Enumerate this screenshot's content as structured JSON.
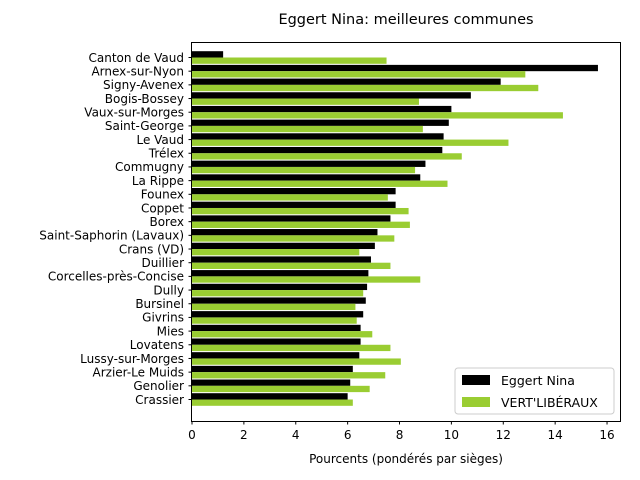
{
  "chart_data": {
    "type": "bar",
    "orientation": "horizontal",
    "title": "Eggert Nina: meilleures communes",
    "xlabel": "Pourcents (pondérés par sièges)",
    "ylabel": "",
    "xlim": [
      0,
      16.5
    ],
    "xticks": [
      "0",
      "2",
      "4",
      "6",
      "8",
      "10",
      "12",
      "14",
      "16"
    ],
    "grid": false,
    "legend_position": "bottom-right",
    "categories": [
      "Canton de Vaud",
      "Arnex-sur-Nyon",
      "Signy-Avenex",
      "Bogis-Bossey",
      "Vaux-sur-Morges",
      "Saint-George",
      "Le Vaud",
      "Trélex",
      "Commugny",
      "La Rippe",
      "Founex",
      "Coppet",
      "Borex",
      "Saint-Saphorin (Lavaux)",
      "Crans (VD)",
      "Duillier",
      "Corcelles-près-Concise",
      "Dully",
      "Bursinel",
      "Givrins",
      "Mies",
      "Lovatens",
      "Lussy-sur-Morges",
      "Arzier-Le Muids",
      "Genolier",
      "Crassier"
    ],
    "series": [
      {
        "name": "Eggert Nina",
        "color": "#000000",
        "values": [
          1.2,
          15.65,
          11.9,
          10.75,
          10.0,
          9.9,
          9.7,
          9.65,
          9.0,
          8.8,
          7.85,
          7.85,
          7.65,
          7.15,
          7.05,
          6.9,
          6.8,
          6.75,
          6.7,
          6.6,
          6.5,
          6.5,
          6.45,
          6.2,
          6.1,
          6.0
        ]
      },
      {
        "name": "VERT'LIBÉRAUX",
        "color": "#9acd32",
        "values": [
          7.5,
          12.85,
          13.35,
          8.75,
          14.3,
          8.9,
          12.2,
          10.4,
          8.6,
          9.85,
          7.55,
          8.35,
          8.4,
          7.8,
          6.45,
          7.65,
          8.8,
          6.6,
          6.3,
          6.35,
          6.95,
          7.65,
          8.05,
          7.45,
          6.85,
          6.2
        ]
      }
    ]
  }
}
